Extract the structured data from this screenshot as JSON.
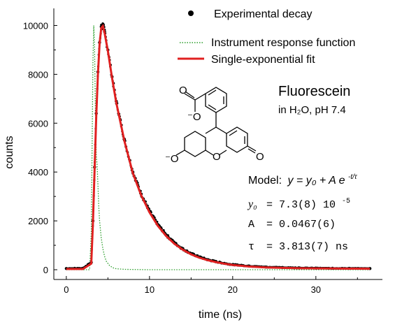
{
  "chart_data": {
    "type": "scatter",
    "title": "",
    "xlabel": "time (ns)",
    "ylabel": "counts",
    "xlim": [
      -1.5,
      38
    ],
    "ylim": [
      -400,
      10700
    ],
    "x_ticks": [
      0,
      10,
      20,
      30
    ],
    "y_ticks": [
      0,
      2000,
      4000,
      6000,
      8000,
      10000
    ],
    "grid": false,
    "legend_position": "top-right",
    "legend": [
      {
        "label": "Experimental decay",
        "style": "markers",
        "color": "#000000"
      },
      {
        "label": "Instrument response function",
        "style": "dotted",
        "color": "#2a9d2a"
      },
      {
        "label": "Single-exponential fit",
        "style": "solid",
        "color": "#e02020"
      }
    ],
    "series": [
      {
        "name": "Experimental decay",
        "kind": "markers",
        "color": "#000000",
        "x": [
          0,
          1,
          2,
          3,
          3.2,
          3.4,
          3.6,
          3.8,
          4,
          4.2,
          4.4,
          4.6,
          5,
          5.5,
          6,
          7,
          8,
          9,
          10,
          11,
          12,
          13,
          14,
          15,
          16,
          17,
          18,
          19,
          20,
          22,
          24,
          26,
          28,
          30,
          32,
          34,
          36.5
        ],
        "y": [
          50,
          55,
          60,
          300,
          2000,
          4200,
          6400,
          8100,
          9300,
          9950,
          10000,
          9750,
          9000,
          7900,
          6900,
          5300,
          4000,
          3100,
          2400,
          1850,
          1430,
          1100,
          850,
          660,
          520,
          410,
          330,
          260,
          210,
          150,
          110,
          90,
          75,
          65,
          60,
          55,
          50
        ]
      },
      {
        "name": "Instrument response function",
        "kind": "dotted",
        "color": "#2a9d2a",
        "x": [
          0,
          2.8,
          3.0,
          3.1,
          3.2,
          3.3,
          3.4,
          3.5,
          3.6,
          3.7,
          3.8,
          3.9,
          4.0,
          4.2,
          4.4,
          4.6,
          4.8,
          5.2,
          5.6,
          6.0,
          7,
          10,
          20,
          36.5
        ],
        "y": [
          0,
          0,
          1500,
          5000,
          8500,
          10000,
          9000,
          6500,
          4700,
          4300,
          3500,
          2600,
          2000,
          1300,
          850,
          550,
          350,
          170,
          80,
          40,
          15,
          0,
          0,
          0
        ]
      },
      {
        "name": "Single-exponential fit",
        "kind": "line",
        "color": "#e02020",
        "x": [
          0,
          1,
          2,
          3,
          3.2,
          3.4,
          3.6,
          3.8,
          4,
          4.2,
          4.4,
          4.6,
          5,
          5.5,
          6,
          7,
          8,
          9,
          10,
          11,
          12,
          13,
          14,
          15,
          16,
          17,
          18,
          19,
          20,
          22,
          24,
          26,
          28,
          30,
          32,
          34,
          36.5
        ],
        "y": [
          30,
          30,
          30,
          250,
          1900,
          4100,
          6300,
          8000,
          9250,
          9900,
          9980,
          9700,
          8950,
          7850,
          6850,
          5250,
          3950,
          3050,
          2350,
          1800,
          1380,
          1060,
          820,
          630,
          490,
          390,
          310,
          245,
          195,
          130,
          95,
          75,
          60,
          55,
          50,
          45,
          40
        ]
      }
    ],
    "annotations": {
      "compound_name": "Fluorescein",
      "conditions": "in H₂O, pH 7.4",
      "model_label": "Model:",
      "model_equation": "y = y₀ + A e",
      "model_exponent": "-t/τ",
      "params": [
        {
          "name": "y₀",
          "value": "= 7.3(8) 10",
          "exp": "-5"
        },
        {
          "name": "A",
          "value": "= 0.0467(6)",
          "exp": ""
        },
        {
          "name": "τ",
          "value": "= 3.813(7) ns",
          "exp": ""
        }
      ],
      "structure_labels": {
        "carboxylate_O": "O",
        "carboxylate_Ominus": "⁻O",
        "phenolate": "⁻O",
        "ketone": "O",
        "ring_O": "O"
      }
    }
  }
}
